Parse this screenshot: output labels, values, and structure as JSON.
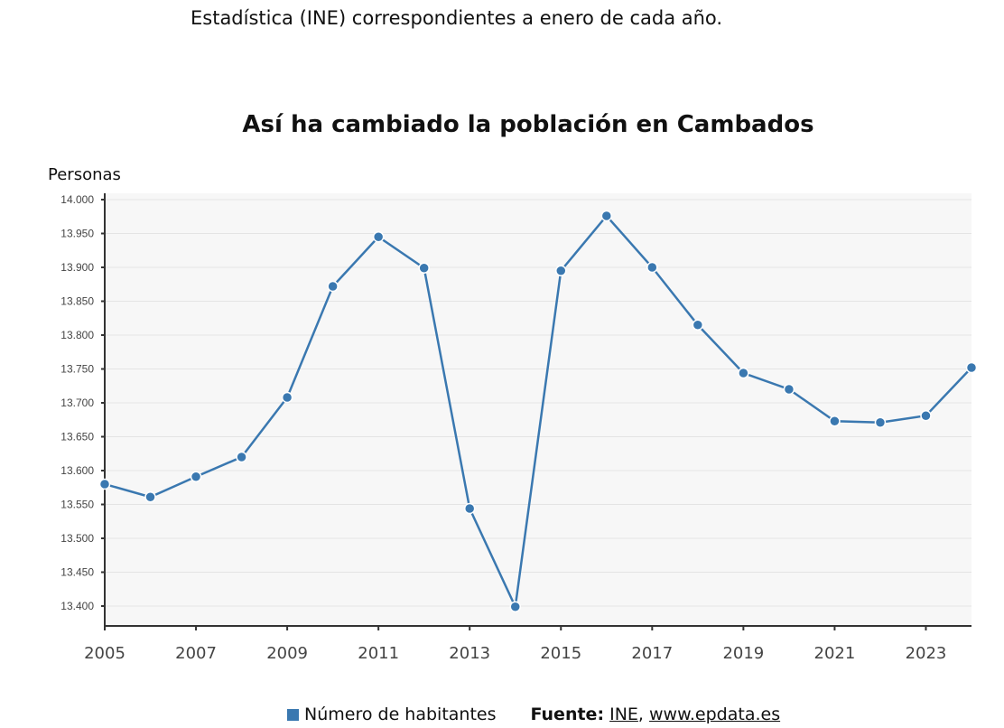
{
  "intro_text": "Estadística (INE) correspondientes a enero de cada año.",
  "chart_data": {
    "type": "line",
    "title": "Así ha cambiado la población en Cambados",
    "ylabel": "Personas",
    "xlabel": "",
    "x": [
      2005,
      2006,
      2007,
      2008,
      2009,
      2010,
      2011,
      2012,
      2013,
      2014,
      2015,
      2016,
      2017,
      2018,
      2019,
      2020,
      2021,
      2022,
      2023,
      2024
    ],
    "series": [
      {
        "name": "Número de habitantes",
        "color": "#3a78b0",
        "values": [
          13580,
          13561,
          13591,
          13620,
          13708,
          13872,
          13945,
          13899,
          13544,
          13399,
          13895,
          13976,
          13900,
          13815,
          13744,
          13720,
          13673,
          13671,
          13681,
          13752
        ]
      }
    ],
    "ylim": [
      13370,
      14010
    ],
    "yticks": [
      14000,
      13950,
      13900,
      13850,
      13800,
      13750,
      13700,
      13650,
      13600,
      13550,
      13500,
      13450,
      13400
    ],
    "ytick_labels": [
      "14.000",
      "13.950",
      "13.900",
      "13.850",
      "13.800",
      "13.750",
      "13.700",
      "13.650",
      "13.600",
      "13.550",
      "13.500",
      "13.450",
      "13.400"
    ],
    "xticks": [
      2005,
      2007,
      2009,
      2011,
      2013,
      2015,
      2017,
      2019,
      2021,
      2023
    ],
    "grid": true,
    "legend": "bottom"
  },
  "source": {
    "label": "Fuente:",
    "link1": "INE",
    "separator": ",",
    "link2": "www.epdata.es"
  }
}
